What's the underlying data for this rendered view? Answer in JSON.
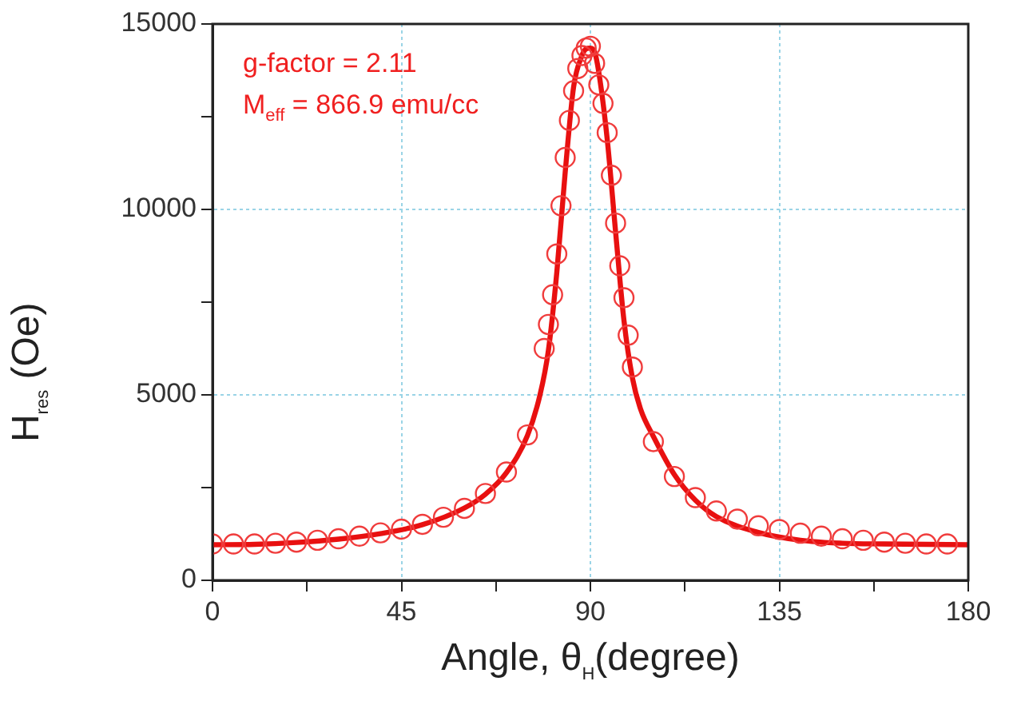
{
  "chart_data": {
    "type": "scatter",
    "xlabel": "Angle, θ$_{H}$(degree)",
    "ylabel": "H$_{res}$ (Oe)",
    "annotations": [
      "g-factor = 2.11",
      "M$_{eff}$ = 866.9 emu/cc"
    ],
    "xlim": [
      0,
      180
    ],
    "xticks": [
      0,
      {
        "value": 22.5,
        "label": null
      },
      45,
      {
        "value": 67.5,
        "label": null
      },
      90,
      {
        "value": 112.5,
        "label": null
      },
      135,
      {
        "value": 157.5,
        "label": null
      },
      180
    ],
    "ylim": [
      0,
      15000
    ],
    "yticks": [
      0,
      {
        "value": 2500,
        "label": null
      },
      5000,
      {
        "value": 7500,
        "label": null
      },
      10000,
      {
        "value": 12500,
        "label": null
      },
      15000
    ],
    "grid": true,
    "series": [
      {
        "type": "scatter",
        "color": "#f03c3c",
        "marker": "circle",
        "x": [
          0,
          5,
          10,
          15,
          20,
          25,
          30,
          35,
          40,
          45,
          50,
          55,
          60,
          65,
          70,
          75,
          79,
          80,
          81,
          82,
          83,
          84,
          85,
          86,
          87,
          88,
          89,
          90,
          91,
          92,
          93,
          94,
          95,
          96,
          97,
          98,
          99,
          100,
          105,
          110,
          115,
          120,
          125,
          130,
          135,
          140,
          145,
          150,
          155,
          160,
          165,
          170,
          175
        ],
        "values": [
          980,
          980,
          980,
          1000,
          1030,
          1080,
          1120,
          1190,
          1280,
          1380,
          1510,
          1700,
          1940,
          2340,
          2920,
          3920,
          6250,
          6900,
          7700,
          8800,
          10100,
          11400,
          12400,
          13200,
          13800,
          14150,
          14350,
          14400,
          13940,
          13360,
          12860,
          12070,
          10920,
          9630,
          8480,
          7620,
          6610,
          5750,
          3740,
          2800,
          2230,
          1870,
          1650,
          1470,
          1370,
          1270,
          1190,
          1120,
          1080,
          1030,
          1000,
          980,
          980
        ]
      },
      {
        "type": "line",
        "color": "#e81010",
        "marker": "none",
        "x": [
          0,
          10,
          20,
          30,
          40,
          50,
          60,
          65,
          70,
          75,
          78,
          80,
          82,
          84,
          86,
          88,
          89,
          90,
          91,
          92,
          94,
          96,
          98,
          100,
          102,
          105,
          110,
          115,
          120,
          130,
          140,
          150,
          160,
          170,
          180
        ],
        "values": [
          960,
          970,
          1020,
          1110,
          1260,
          1500,
          1950,
          2320,
          2900,
          3900,
          5000,
          6200,
          8300,
          11000,
          13300,
          14150,
          14330,
          14350,
          14250,
          13700,
          11900,
          9400,
          7000,
          5460,
          4600,
          3880,
          2850,
          2160,
          1720,
          1290,
          1080,
          1000,
          980,
          970,
          960
        ]
      }
    ]
  }
}
